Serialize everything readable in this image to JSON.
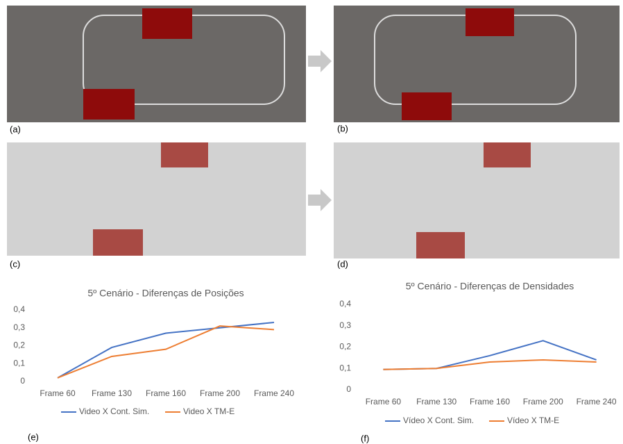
{
  "panels": [
    "(a)",
    "(b)",
    "(c)",
    "(d)",
    "(e)",
    "(f)"
  ],
  "chart_data": [
    {
      "type": "line",
      "title": "5º Cenário - Diferenças de Posições",
      "categories": [
        "Frame 60",
        "Frame 130",
        "Frame 160",
        "Frame 200",
        "Frame 240"
      ],
      "series": [
        {
          "name": "Video X Cont. Sim.",
          "color": "#4472c4",
          "values": [
            0.02,
            0.19,
            0.27,
            0.3,
            0.33
          ]
        },
        {
          "name": "Video X TM-E",
          "color": "#ed7d31",
          "values": [
            0.02,
            0.14,
            0.18,
            0.31,
            0.29
          ]
        }
      ],
      "ylim": [
        0,
        0.4
      ],
      "yticks": [
        0,
        {
          "value": 0.1,
          "label": "0,1"
        },
        {
          "value": 0.2,
          "label": "0,2"
        },
        {
          "value": 0.3,
          "label": "0,3"
        },
        {
          "value": 0.4,
          "label": "0,4"
        }
      ],
      "grid": false,
      "legend": "bottom"
    },
    {
      "type": "line",
      "title": "5º Cenário - Diferenças de Densidades",
      "categories": [
        "Frame 60",
        "Frame 130",
        "Frame 160",
        "Frame 200",
        "Frame 240"
      ],
      "series": [
        {
          "name": "Vídeo X Cont. Sim.",
          "color": "#4472c4",
          "values": [
            0.095,
            0.1,
            0.16,
            0.23,
            0.14
          ]
        },
        {
          "name": "Vídeo X TM-E",
          "color": "#ed7d31",
          "values": [
            0.095,
            0.1,
            0.13,
            0.14,
            0.13
          ]
        }
      ],
      "ylim": [
        0,
        0.4
      ],
      "yticks": [
        0,
        {
          "value": 0.1,
          "label": "0,1"
        },
        {
          "value": 0.2,
          "label": "0,2"
        },
        {
          "value": 0.3,
          "label": "0,3"
        },
        {
          "value": 0.4,
          "label": "0,4"
        }
      ],
      "grid": false,
      "legend": "bottom"
    }
  ]
}
